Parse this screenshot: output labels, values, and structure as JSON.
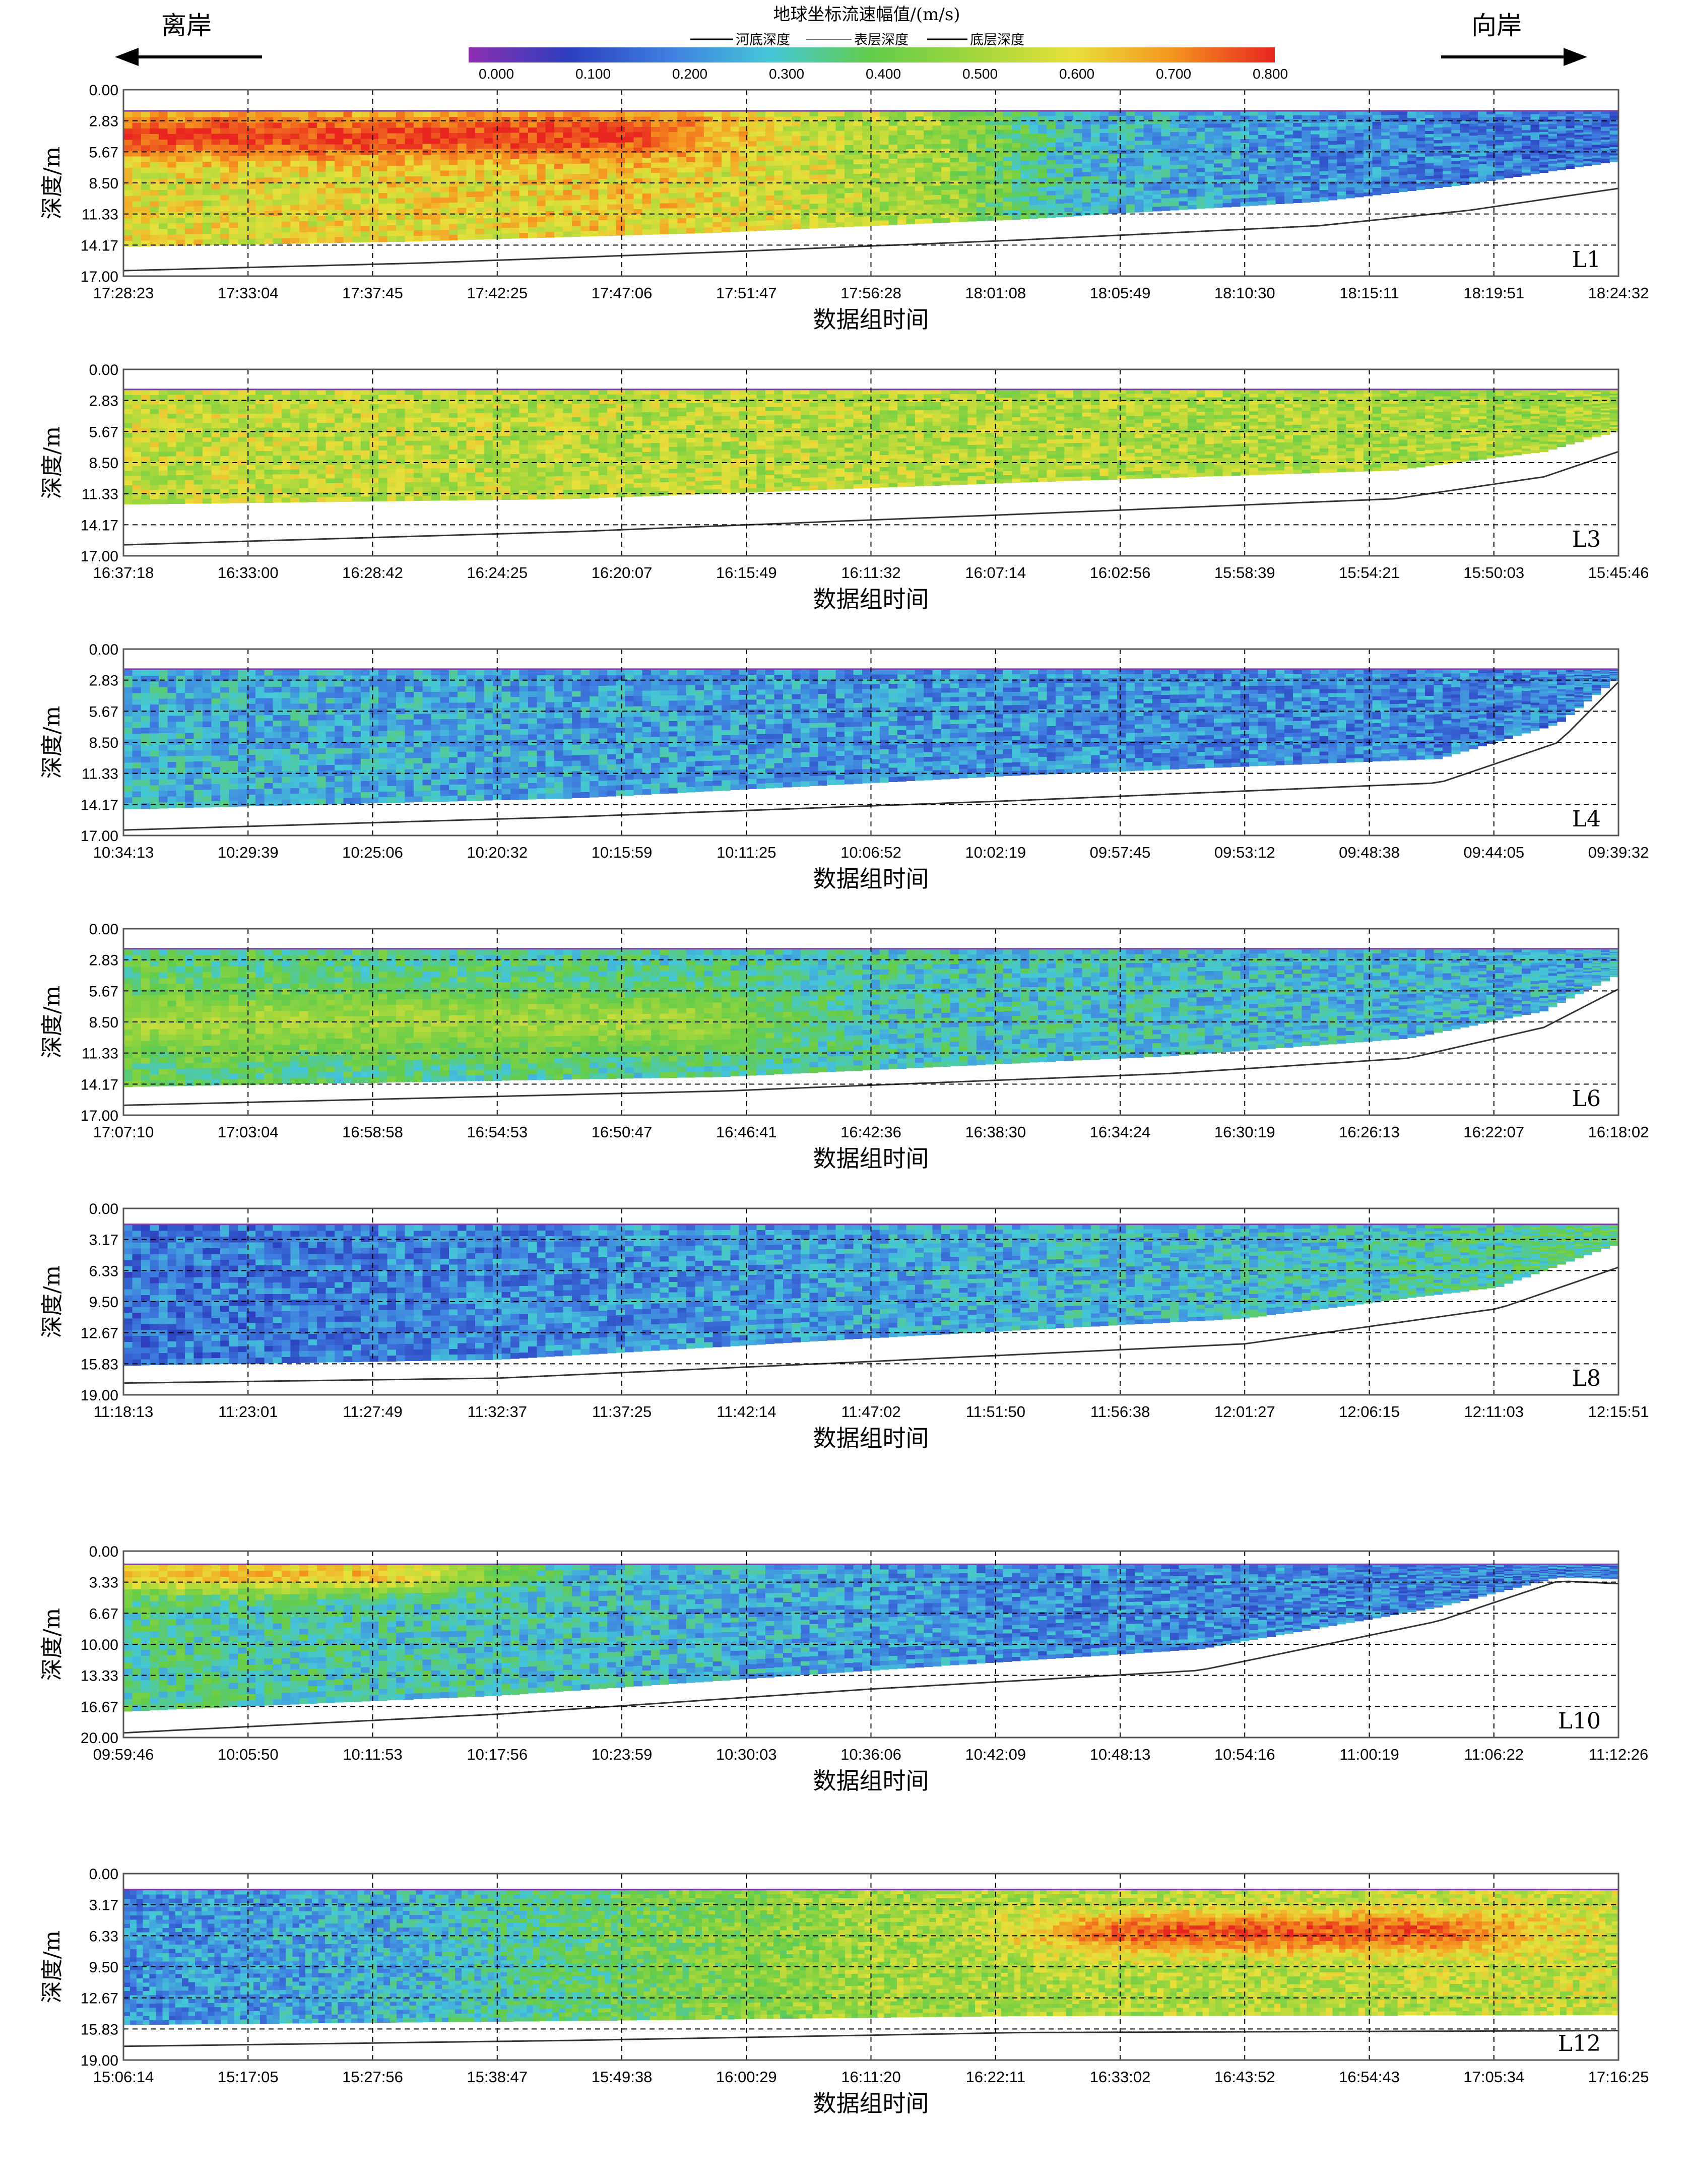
{
  "header": {
    "left_label": "离岸",
    "right_label": "向岸",
    "colorbar_title": "地球坐标流速幅值/(m/s)",
    "legend_items": [
      "河底深度",
      "表层深度",
      "底层深度"
    ],
    "colorbar_ticks": [
      "0.000",
      "0.100",
      "0.200",
      "0.300",
      "0.400",
      "0.500",
      "0.600",
      "0.700",
      "0.800"
    ]
  },
  "colors": {
    "colormap": [
      "#8c2fb0",
      "#2b3fbf",
      "#3f7fe0",
      "#45c8d8",
      "#62cc4a",
      "#9fd63c",
      "#e8e03a",
      "#f5931f",
      "#e8251f"
    ],
    "bed_line": "#333333",
    "frame": "#555555"
  },
  "chart_data": [
    {
      "type": "heatmap",
      "label": "L1",
      "xlabel": "数据组时间",
      "ylabel": "深度/m",
      "x_ticks": [
        "17:28:23",
        "17:33:04",
        "17:37:45",
        "17:42:25",
        "17:47:06",
        "17:51:47",
        "17:56:28",
        "18:01:08",
        "18:05:49",
        "18:10:30",
        "18:15:11",
        "18:19:51",
        "18:24:32"
      ],
      "y_ticks": [
        "0.00",
        "2.83",
        "5.67",
        "8.50",
        "11.33",
        "14.17",
        "17.00"
      ],
      "ylim": [
        0,
        17
      ],
      "surface_depth": 2.0,
      "bed_depth": [
        [
          0,
          16.5
        ],
        [
          0.2,
          15.8
        ],
        [
          0.4,
          14.8
        ],
        [
          0.6,
          13.7
        ],
        [
          0.8,
          12.4
        ],
        [
          0.9,
          11.0
        ],
        [
          1,
          9.0
        ]
      ],
      "valid_bottom": [
        [
          0,
          14.3
        ],
        [
          0.2,
          13.8
        ],
        [
          0.4,
          13.0
        ],
        [
          0.6,
          11.8
        ],
        [
          0.8,
          10.2
        ],
        [
          0.9,
          8.6
        ],
        [
          1,
          6.5
        ]
      ],
      "velocity_profile": [
        [
          0,
          0.58
        ],
        [
          0.35,
          0.62
        ],
        [
          0.55,
          0.5
        ],
        [
          0.63,
          0.3
        ],
        [
          0.8,
          0.22
        ],
        [
          1,
          0.18
        ]
      ],
      "core": {
        "depth": 4.2,
        "peak": 0.78,
        "x_start": 0.0,
        "x_end": 0.45,
        "width_m": 2.2
      },
      "grid_cols": 170,
      "grid_rows": 24
    },
    {
      "type": "heatmap",
      "label": "L3",
      "xlabel": "数据组时间",
      "ylabel": "深度/m",
      "x_ticks": [
        "16:37:18",
        "16:33:00",
        "16:28:42",
        "16:24:25",
        "16:20:07",
        "16:15:49",
        "16:11:32",
        "16:07:14",
        "16:02:56",
        "15:58:39",
        "15:54:21",
        "15:50:03",
        "15:45:46"
      ],
      "y_ticks": [
        "0.00",
        "2.83",
        "5.67",
        "8.50",
        "11.33",
        "14.17",
        "17.00"
      ],
      "ylim": [
        0,
        17
      ],
      "surface_depth": 1.9,
      "bed_depth": [
        [
          0,
          16.0
        ],
        [
          0.3,
          14.8
        ],
        [
          0.6,
          13.2
        ],
        [
          0.85,
          11.8
        ],
        [
          0.95,
          9.8
        ],
        [
          1,
          7.5
        ]
      ],
      "valid_bottom": [
        [
          0,
          12.3
        ],
        [
          0.3,
          11.8
        ],
        [
          0.6,
          10.3
        ],
        [
          0.85,
          9.2
        ],
        [
          0.95,
          7.5
        ],
        [
          1,
          5.6
        ]
      ],
      "velocity_profile": [
        [
          0,
          0.55
        ],
        [
          0.5,
          0.53
        ],
        [
          1,
          0.5
        ]
      ],
      "core": {
        "depth": 6.0,
        "peak": 0.0,
        "x_start": 0,
        "x_end": 0,
        "width_m": 2
      },
      "grid_cols": 170,
      "grid_rows": 24
    },
    {
      "type": "heatmap",
      "label": "L4",
      "xlabel": "数据组时间",
      "ylabel": "深度/m",
      "x_ticks": [
        "10:34:13",
        "10:29:39",
        "10:25:06",
        "10:20:32",
        "10:15:59",
        "10:11:25",
        "10:06:52",
        "10:02:19",
        "09:57:45",
        "09:53:12",
        "09:48:38",
        "09:44:05",
        "09:39:32"
      ],
      "y_ticks": [
        "0.00",
        "2.83",
        "5.67",
        "8.50",
        "11.33",
        "14.17",
        "17.00"
      ],
      "ylim": [
        0,
        17
      ],
      "surface_depth": 1.9,
      "bed_depth": [
        [
          0,
          16.5
        ],
        [
          0.3,
          15.3
        ],
        [
          0.6,
          13.8
        ],
        [
          0.88,
          12.2
        ],
        [
          0.96,
          8.5
        ],
        [
          1,
          3.0
        ]
      ],
      "valid_bottom": [
        [
          0,
          14.6
        ],
        [
          0.3,
          13.6
        ],
        [
          0.6,
          11.5
        ],
        [
          0.88,
          10.0
        ],
        [
          0.96,
          6.8
        ],
        [
          1,
          2.6
        ]
      ],
      "velocity_profile": [
        [
          0,
          0.28
        ],
        [
          0.4,
          0.24
        ],
        [
          1,
          0.2
        ]
      ],
      "core": {
        "depth": 8.0,
        "peak": 0.0,
        "x_start": 0,
        "x_end": 0,
        "width_m": 2
      },
      "grid_cols": 170,
      "grid_rows": 24
    },
    {
      "type": "heatmap",
      "label": "L6",
      "xlabel": "数据组时间",
      "ylabel": "深度/m",
      "x_ticks": [
        "17:07:10",
        "17:03:04",
        "16:58:58",
        "16:54:53",
        "16:50:47",
        "16:46:41",
        "16:42:36",
        "16:38:30",
        "16:34:24",
        "16:30:19",
        "16:26:13",
        "16:22:07",
        "16:18:02"
      ],
      "y_ticks": [
        "0.00",
        "2.83",
        "5.67",
        "8.50",
        "11.33",
        "14.17",
        "17.00"
      ],
      "ylim": [
        0,
        17
      ],
      "surface_depth": 1.9,
      "bed_depth": [
        [
          0,
          16.1
        ],
        [
          0.4,
          14.8
        ],
        [
          0.7,
          13.2
        ],
        [
          0.86,
          11.8
        ],
        [
          0.95,
          9.0
        ],
        [
          1,
          5.5
        ]
      ],
      "valid_bottom": [
        [
          0,
          14.4
        ],
        [
          0.4,
          13.5
        ],
        [
          0.7,
          11.6
        ],
        [
          0.86,
          10.0
        ],
        [
          0.95,
          7.5
        ],
        [
          1,
          4.2
        ]
      ],
      "velocity_profile": [
        [
          0,
          0.38
        ],
        [
          0.5,
          0.32
        ],
        [
          1,
          0.26
        ]
      ],
      "core": {
        "depth": 8.5,
        "peak": 0.5,
        "x_start": 0.0,
        "x_end": 0.5,
        "width_m": 2.8
      },
      "grid_cols": 170,
      "grid_rows": 24
    },
    {
      "type": "heatmap",
      "label": "L8",
      "xlabel": "数据组时间",
      "ylabel": "深度/m",
      "x_ticks": [
        "11:18:13",
        "11:23:01",
        "11:27:49",
        "11:32:37",
        "11:37:25",
        "11:42:14",
        "11:47:02",
        "11:51:50",
        "11:56:38",
        "12:01:27",
        "12:06:15",
        "12:11:03",
        "12:15:51"
      ],
      "y_ticks": [
        "0.00",
        "3.17",
        "6.33",
        "9.50",
        "12.67",
        "15.83",
        "19.00"
      ],
      "ylim": [
        0,
        19
      ],
      "surface_depth": 1.7,
      "bed_depth": [
        [
          0,
          17.8
        ],
        [
          0.25,
          17.3
        ],
        [
          0.5,
          15.6
        ],
        [
          0.75,
          13.8
        ],
        [
          0.92,
          10.2
        ],
        [
          1,
          6.0
        ]
      ],
      "valid_bottom": [
        [
          0,
          16.0
        ],
        [
          0.25,
          15.4
        ],
        [
          0.5,
          13.2
        ],
        [
          0.75,
          11.2
        ],
        [
          0.92,
          8.0
        ],
        [
          1,
          3.6
        ]
      ],
      "velocity_profile": [
        [
          0,
          0.18
        ],
        [
          0.5,
          0.25
        ],
        [
          0.8,
          0.3
        ],
        [
          1,
          0.38
        ]
      ],
      "core": {
        "depth": 9.0,
        "peak": 0.0,
        "x_start": 0,
        "x_end": 0,
        "width_m": 2
      },
      "grid_cols": 170,
      "grid_rows": 24
    },
    {
      "type": "heatmap",
      "label": "L10",
      "xlabel": "数据组时间",
      "ylabel": "深度/m",
      "x_ticks": [
        "09:59:46",
        "10:05:50",
        "10:11:53",
        "10:17:56",
        "10:23:59",
        "10:30:03",
        "10:36:06",
        "10:42:09",
        "10:48:13",
        "10:54:16",
        "11:00:19",
        "11:06:22",
        "11:12:26"
      ],
      "y_ticks": [
        "0.00",
        "3.33",
        "6.67",
        "10.00",
        "13.33",
        "16.67",
        "20.00"
      ],
      "ylim": [
        0,
        20
      ],
      "surface_depth": 1.5,
      "bed_depth": [
        [
          0,
          19.5
        ],
        [
          0.25,
          17.5
        ],
        [
          0.5,
          14.8
        ],
        [
          0.72,
          12.8
        ],
        [
          0.88,
          7.5
        ],
        [
          0.96,
          3.2
        ],
        [
          1,
          3.5
        ]
      ],
      "valid_bottom": [
        [
          0,
          17.2
        ],
        [
          0.25,
          15.5
        ],
        [
          0.5,
          12.8
        ],
        [
          0.72,
          10.5
        ],
        [
          0.88,
          6.0
        ],
        [
          0.96,
          2.8
        ],
        [
          1,
          3.0
        ]
      ],
      "velocity_profile": [
        [
          0,
          0.35
        ],
        [
          0.3,
          0.3
        ],
        [
          0.6,
          0.22
        ],
        [
          1,
          0.2
        ]
      ],
      "core": {
        "depth": 2.5,
        "peak": 0.65,
        "x_start": 0.0,
        "x_end": 0.3,
        "width_m": 2.0
      },
      "grid_cols": 170,
      "grid_rows": 24
    },
    {
      "type": "heatmap",
      "label": "L12",
      "xlabel": "数据组时间",
      "ylabel": "深度/m",
      "x_ticks": [
        "15:06:14",
        "15:17:05",
        "15:27:56",
        "15:38:47",
        "15:49:38",
        "16:00:29",
        "16:11:20",
        "16:22:11",
        "16:33:02",
        "16:43:52",
        "16:54:43",
        "17:05:34",
        "17:16:25"
      ],
      "y_ticks": [
        "0.00",
        "3.17",
        "6.33",
        "9.50",
        "12.67",
        "15.83",
        "19.00"
      ],
      "ylim": [
        0,
        19
      ],
      "surface_depth": 1.7,
      "bed_depth": [
        [
          0,
          17.6
        ],
        [
          0.3,
          17.0
        ],
        [
          0.6,
          16.2
        ],
        [
          1,
          16.0
        ]
      ],
      "valid_bottom": [
        [
          0,
          15.4
        ],
        [
          0.3,
          15.0
        ],
        [
          0.6,
          14.5
        ],
        [
          1,
          14.4
        ]
      ],
      "velocity_profile": [
        [
          0,
          0.22
        ],
        [
          0.2,
          0.28
        ],
        [
          0.35,
          0.42
        ],
        [
          0.5,
          0.5
        ],
        [
          1,
          0.55
        ]
      ],
      "core": {
        "depth": 6.0,
        "peak": 0.76,
        "x_start": 0.55,
        "x_end": 1.0,
        "width_m": 2.2
      },
      "grid_cols": 230,
      "grid_rows": 32
    }
  ]
}
